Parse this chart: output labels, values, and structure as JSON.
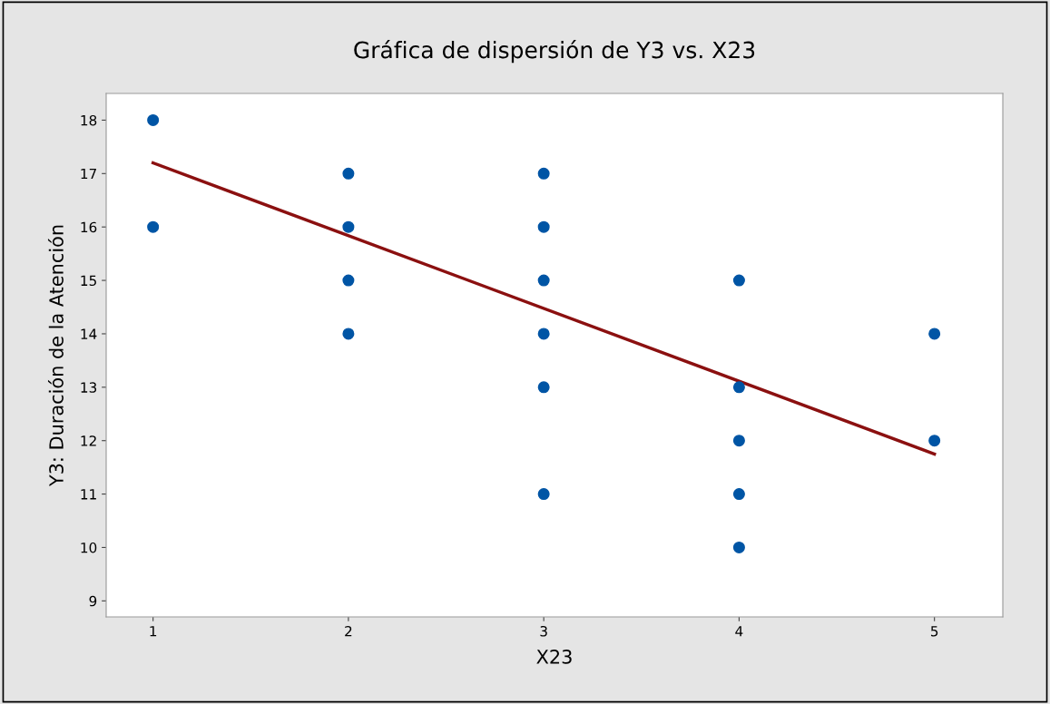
{
  "chart_data": {
    "type": "scatter",
    "title": "Gráfica de dispersión de Y3 vs. X23",
    "xlabel": "X23",
    "ylabel": "Y3: Duración de la Atención",
    "series": [
      {
        "color": "#0055a5",
        "marker": "circle",
        "x": [
          1,
          1,
          2,
          2,
          2,
          2,
          3,
          3,
          3,
          3,
          3,
          3,
          4,
          4,
          4,
          4,
          4,
          5,
          5
        ],
        "values": [
          18,
          16,
          17,
          16,
          15,
          14,
          17,
          16,
          15,
          14,
          13,
          11,
          15,
          13,
          12,
          11,
          10,
          14,
          12
        ]
      },
      {
        "type": "line",
        "color": "#8b1010",
        "x": [
          1,
          5
        ],
        "values": [
          17.2,
          11.75
        ]
      }
    ],
    "xlim": [
      0.76,
      5.35
    ],
    "ylim": [
      8.7,
      18.5
    ],
    "xticks": [
      1,
      2,
      3,
      4,
      5
    ],
    "yticks": [
      9,
      10,
      11,
      12,
      13,
      14,
      15,
      16,
      17,
      18
    ],
    "grid": false,
    "legend": false
  }
}
